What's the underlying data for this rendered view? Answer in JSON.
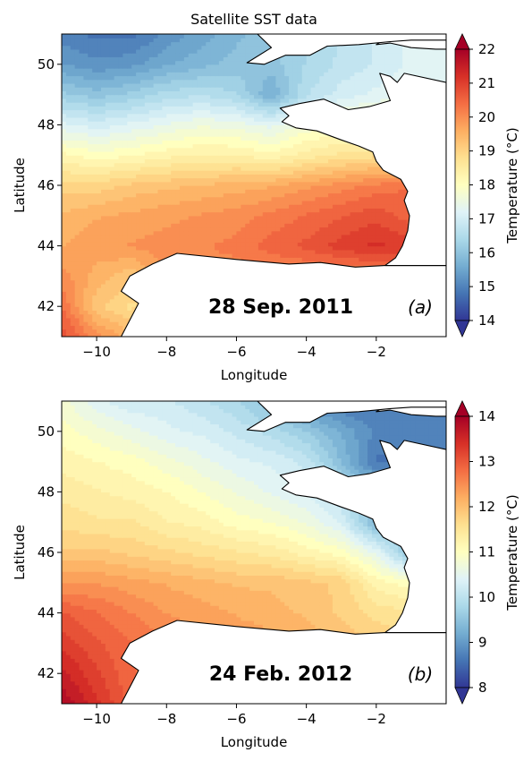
{
  "figure": {
    "title": "Satellite SST data"
  },
  "chart_data": [
    {
      "type": "heatmap",
      "panel_label": "(a)",
      "date_label": "28 Sep. 2011",
      "xlabel": "Longitude",
      "ylabel": "Latitude",
      "xlim": [
        -11,
        0
      ],
      "ylim": [
        41,
        51
      ],
      "xticks": [
        -10,
        -8,
        -6,
        -4,
        -2
      ],
      "yticks": [
        42,
        44,
        46,
        48,
        50
      ],
      "colorbar": {
        "label": "Temperature ($^\\circ C$)",
        "label_display": "Temperature (°C)",
        "min": 14,
        "max": 22,
        "ticks": [
          14,
          15,
          16,
          17,
          18,
          19,
          20,
          21,
          22
        ],
        "colormap": "RdYlBu_r",
        "extend": "both"
      },
      "field": {
        "lats": [
          51,
          50,
          49,
          48,
          47,
          46,
          45,
          44,
          43,
          42,
          41
        ],
        "lons": [
          -11,
          -10,
          -9,
          -8,
          -7,
          -6,
          -5,
          -4,
          -3,
          -2,
          -1,
          0
        ],
        "values": [
          [
            15.0,
            14.8,
            14.8,
            15.2,
            15.5,
            15.8,
            16.1,
            16.3,
            16.6,
            16.9,
            17.2,
            17.2
          ],
          [
            15.4,
            15.2,
            15.3,
            15.6,
            15.8,
            16.0,
            16.0,
            16.4,
            16.7,
            16.9,
            17.2,
            17.2
          ],
          [
            16.2,
            16.0,
            16.2,
            16.5,
            16.6,
            16.4,
            15.6,
            16.6,
            17.0,
            17.2,
            17.4,
            17.4
          ],
          [
            17.2,
            17.0,
            17.2,
            17.4,
            17.6,
            17.5,
            17.3,
            17.7,
            17.9,
            18.0,
            18.0,
            18.0
          ],
          [
            18.2,
            18.0,
            18.1,
            18.3,
            18.4,
            18.4,
            18.2,
            18.5,
            18.7,
            18.8,
            18.8,
            18.8
          ],
          [
            19.0,
            19.0,
            19.2,
            19.3,
            19.4,
            19.5,
            19.6,
            19.8,
            20.0,
            20.2,
            20.4,
            20.4
          ],
          [
            19.4,
            19.6,
            19.7,
            19.8,
            19.9,
            20.0,
            20.2,
            20.4,
            20.6,
            20.8,
            20.5,
            20.5
          ],
          [
            19.6,
            19.8,
            19.9,
            20.0,
            20.1,
            20.2,
            20.5,
            20.7,
            21.0,
            21.2,
            21.0,
            21.0
          ],
          [
            20.0,
            19.5,
            19.2,
            20.0,
            20.0,
            20.0,
            20.0,
            20.0,
            20.0,
            20.0,
            20.0,
            20.0
          ],
          [
            20.4,
            19.2,
            18.8,
            19.5,
            19.5,
            19.5,
            19.5,
            19.5,
            19.5,
            19.5,
            19.5,
            19.5
          ],
          [
            20.8,
            20.0,
            19.5,
            19.5,
            19.5,
            19.5,
            19.5,
            19.5,
            19.5,
            19.5,
            19.5,
            19.5
          ]
        ]
      }
    },
    {
      "type": "heatmap",
      "panel_label": "(b)",
      "date_label": "24 Feb. 2012",
      "xlabel": "Longitude",
      "ylabel": "Latitude",
      "xlim": [
        -11,
        0
      ],
      "ylim": [
        41,
        51
      ],
      "xticks": [
        -10,
        -8,
        -6,
        -4,
        -2
      ],
      "yticks": [
        42,
        44,
        46,
        48,
        50
      ],
      "colorbar": {
        "label": "Temperature ($^\\circ C$)",
        "label_display": "Temperature (°C)",
        "min": 8,
        "max": 14,
        "ticks": [
          8,
          9,
          10,
          11,
          12,
          13,
          14
        ],
        "colormap": "RdYlBu_r",
        "extend": "both"
      },
      "field": {
        "lats": [
          51,
          50,
          49,
          48,
          47,
          46,
          45,
          44,
          43,
          42,
          41
        ],
        "lons": [
          -11,
          -10,
          -9,
          -8,
          -7,
          -6,
          -5,
          -4,
          -3,
          -2,
          -1,
          0
        ],
        "values": [
          [
            10.8,
            10.4,
            10.2,
            10.2,
            10.0,
            9.8,
            9.4,
            8.8,
            8.6,
            8.6,
            8.6,
            8.6
          ],
          [
            11.0,
            10.8,
            10.6,
            10.4,
            10.3,
            10.1,
            9.9,
            9.6,
            9.2,
            8.8,
            8.8,
            8.8
          ],
          [
            11.2,
            11.1,
            11.0,
            10.8,
            10.6,
            10.4,
            10.3,
            10.1,
            9.4,
            8.6,
            8.6,
            8.6
          ],
          [
            11.4,
            11.3,
            11.2,
            11.1,
            10.9,
            10.7,
            10.5,
            10.3,
            10.0,
            9.6,
            9.6,
            9.6
          ],
          [
            11.6,
            11.5,
            11.5,
            11.3,
            11.2,
            11.0,
            10.9,
            10.7,
            10.3,
            9.3,
            9.3,
            9.3
          ],
          [
            11.9,
            11.9,
            11.8,
            11.7,
            11.6,
            11.5,
            11.4,
            11.2,
            11.0,
            10.5,
            9.5,
            9.5
          ],
          [
            12.4,
            12.4,
            12.3,
            12.2,
            12.1,
            12.0,
            12.0,
            11.9,
            11.8,
            11.2,
            11.0,
            11.0
          ],
          [
            13.0,
            12.8,
            12.6,
            12.4,
            12.3,
            12.2,
            12.1,
            12.0,
            11.8,
            11.6,
            11.5,
            11.5
          ],
          [
            13.3,
            13.0,
            12.8,
            12.6,
            12.5,
            12.4,
            12.3,
            12.2,
            12.0,
            11.8,
            11.7,
            11.7
          ],
          [
            13.6,
            13.2,
            12.8,
            12.6,
            12.5,
            12.4,
            12.3,
            12.2,
            12.0,
            11.8,
            11.7,
            11.7
          ],
          [
            13.9,
            13.4,
            12.9,
            12.6,
            12.5,
            12.4,
            12.3,
            12.2,
            12.0,
            11.8,
            11.7,
            11.7
          ]
        ]
      }
    }
  ],
  "land_polygons": {
    "iberia": [
      [
        -9.3,
        41
      ],
      [
        -8.8,
        42.1
      ],
      [
        -9.3,
        42.5
      ],
      [
        -9.05,
        43.0
      ],
      [
        -8.4,
        43.4
      ],
      [
        -7.7,
        43.75
      ],
      [
        -6.0,
        43.55
      ],
      [
        -4.5,
        43.4
      ],
      [
        -3.6,
        43.45
      ],
      [
        -2.6,
        43.3
      ],
      [
        -1.75,
        43.35
      ],
      [
        0,
        43.35
      ],
      [
        0,
        41
      ]
    ],
    "france": [
      [
        0,
        51
      ],
      [
        -1.5,
        51
      ],
      [
        -2.0,
        50.65
      ],
      [
        -1.6,
        50.7
      ],
      [
        -1.0,
        50.55
      ],
      [
        -0.3,
        50.5
      ],
      [
        0,
        50.5
      ]
    ],
    "brittany_coast": [
      [
        0,
        49.4
      ],
      [
        -1.2,
        49.7
      ],
      [
        -1.4,
        49.4
      ],
      [
        -1.6,
        49.6
      ],
      [
        -1.9,
        49.7
      ],
      [
        -1.6,
        48.8
      ],
      [
        -2.2,
        48.6
      ],
      [
        -2.8,
        48.5
      ],
      [
        -3.5,
        48.85
      ],
      [
        -4.2,
        48.7
      ],
      [
        -4.75,
        48.55
      ],
      [
        -4.5,
        48.3
      ],
      [
        -4.7,
        48.1
      ],
      [
        -4.3,
        47.9
      ],
      [
        -3.7,
        47.8
      ],
      [
        -3.0,
        47.5
      ],
      [
        -2.5,
        47.3
      ],
      [
        -2.1,
        47.1
      ],
      [
        -2.0,
        46.8
      ],
      [
        -1.8,
        46.5
      ],
      [
        -1.3,
        46.2
      ],
      [
        -1.1,
        45.8
      ],
      [
        -1.2,
        45.5
      ],
      [
        -1.05,
        45.0
      ],
      [
        -1.1,
        44.5
      ],
      [
        -1.25,
        44.0
      ],
      [
        -1.45,
        43.6
      ],
      [
        -1.75,
        43.35
      ],
      [
        0,
        43.35
      ]
    ],
    "uk_south": [
      [
        -5.7,
        50.05
      ],
      [
        -5.2,
        50.0
      ],
      [
        -4.6,
        50.3
      ],
      [
        -3.9,
        50.3
      ],
      [
        -3.4,
        50.6
      ],
      [
        -2.5,
        50.65
      ],
      [
        -1.6,
        50.75
      ],
      [
        -1.0,
        50.8
      ],
      [
        0,
        50.8
      ],
      [
        0,
        51
      ],
      [
        -5.4,
        51
      ],
      [
        -5.0,
        50.55
      ]
    ]
  }
}
